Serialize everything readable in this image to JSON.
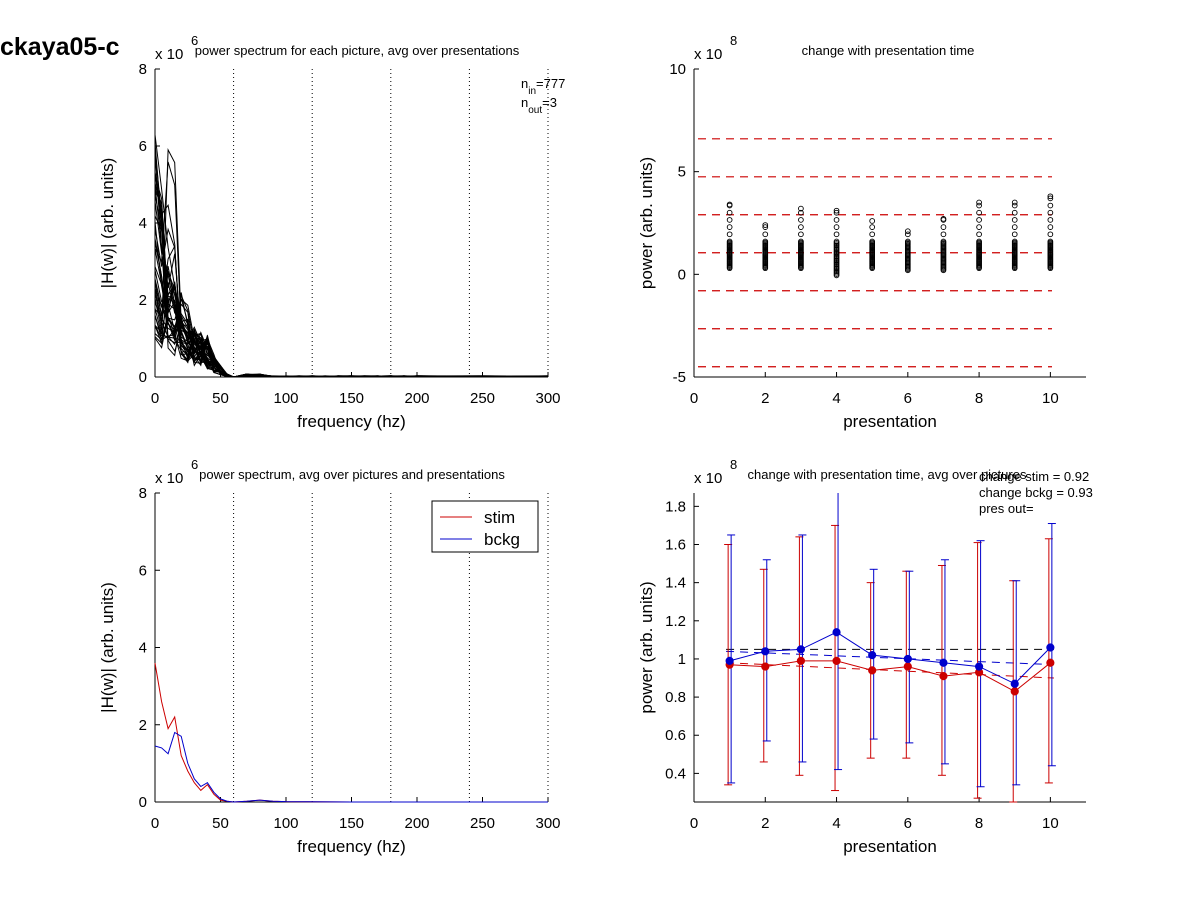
{
  "figure_title": "ckaya05-c",
  "chart_data": [
    {
      "type": "line",
      "title": "power spectrum for each picture, avg over presentations",
      "xlabel": "frequency (hz)",
      "ylabel": "|H(w)| (arb. units)",
      "xlim": [
        0,
        300
      ],
      "ylim": [
        0,
        8
      ],
      "xticks": [
        "0",
        "50",
        "100",
        "150",
        "200",
        "250",
        "300"
      ],
      "yticks": [
        "0",
        "2",
        "4",
        "6",
        "8"
      ],
      "y_multiplier_base": "x 10",
      "y_multiplier_exp": "6",
      "vlines": [
        60,
        120,
        180,
        240,
        300
      ],
      "annotation": {
        "n_in_label": "n",
        "n_in_sub": "in",
        "n_in_val": "=777",
        "n_out_label": "n",
        "n_out_sub": "out",
        "n_out_val": "=3"
      },
      "series_count": 40,
      "x": [
        0,
        5,
        10,
        15,
        20,
        25,
        30,
        35,
        40,
        45,
        50,
        55,
        60,
        70,
        80,
        90,
        100,
        110,
        120,
        130,
        140,
        150,
        160,
        170,
        180,
        190,
        200,
        250,
        300
      ],
      "envelope_note_values": {
        "peak_max": 6.3,
        "peak_at_hz": 2
      },
      "grid": false
    },
    {
      "type": "scatter",
      "title": "change with presentation time",
      "xlabel": "presentation",
      "ylabel": "power (arb. units)",
      "xlim": [
        0,
        11
      ],
      "ylim": [
        -5,
        10
      ],
      "xticks": [
        "0",
        "2",
        "4",
        "6",
        "8",
        "10"
      ],
      "yticks": [
        "-5",
        "0",
        "5",
        "10"
      ],
      "y_multiplier_base": "x 10",
      "y_multiplier_exp": "8",
      "hlines": [
        6.6,
        4.75,
        2.9,
        1.05,
        -0.8,
        -2.65,
        -4.5
      ],
      "hline_color": "#cc0000",
      "column_max": [
        3.4,
        2.4,
        3.2,
        3.1,
        2.6,
        2.1,
        2.7,
        3.5,
        3.5,
        3.8
      ],
      "column_min": [
        0.3,
        0.3,
        0.3,
        -0.05,
        0.3,
        0.2,
        0.2,
        0.3,
        0.3,
        0.3
      ],
      "grid": false
    },
    {
      "type": "line",
      "title": "power spectrum, avg over pictures and presentations",
      "xlabel": "frequency (hz)",
      "ylabel": "|H(w)| (arb. units)",
      "xlim": [
        0,
        300
      ],
      "ylim": [
        0,
        8
      ],
      "xticks": [
        "0",
        "50",
        "100",
        "150",
        "200",
        "250",
        "300"
      ],
      "yticks": [
        "0",
        "2",
        "4",
        "6",
        "8"
      ],
      "y_multiplier_base": "x 10",
      "y_multiplier_exp": "6",
      "vlines": [
        60,
        120,
        180,
        240,
        300
      ],
      "legend_position": "top-right",
      "x": [
        0,
        5,
        10,
        15,
        20,
        25,
        30,
        35,
        40,
        45,
        50,
        55,
        60,
        70,
        80,
        90,
        100,
        150,
        200,
        250,
        300
      ],
      "series": [
        {
          "name": "stim",
          "color": "#cc0000",
          "values": [
            3.6,
            2.6,
            1.9,
            2.2,
            1.2,
            0.8,
            0.5,
            0.3,
            0.45,
            0.2,
            0.05,
            0.02,
            0.0,
            0.02,
            0.05,
            0.02,
            0.01,
            0.0,
            0.0,
            0.0,
            0.0
          ]
        },
        {
          "name": "bckg",
          "color": "#0000cc",
          "values": [
            1.45,
            1.4,
            1.25,
            1.8,
            1.7,
            1.0,
            0.6,
            0.4,
            0.5,
            0.25,
            0.08,
            0.02,
            0.0,
            0.02,
            0.05,
            0.02,
            0.01,
            0.0,
            0.0,
            0.0,
            0.0
          ]
        }
      ],
      "grid": false
    },
    {
      "type": "line",
      "title": "change with presentation time, avg over pictures",
      "xlabel": "presentation",
      "ylabel": "power (arb. units)",
      "xlim": [
        0,
        11
      ],
      "ylim": [
        0.25,
        1.87
      ],
      "xticks": [
        "0",
        "2",
        "4",
        "6",
        "8",
        "10"
      ],
      "yticks": [
        "0.4",
        "0.6",
        "0.8",
        "1",
        "1.2",
        "1.4",
        "1.6",
        "1.8"
      ],
      "y_multiplier_base": "x 10",
      "y_multiplier_exp": "8",
      "stats_text": [
        "change stim = 0.92",
        "change bckg = 0.93",
        "pres out="
      ],
      "x": [
        1,
        2,
        3,
        4,
        5,
        6,
        7,
        8,
        9,
        10
      ],
      "series": [
        {
          "name": "stim",
          "color": "#cc0000",
          "values": [
            0.97,
            0.96,
            0.99,
            0.99,
            0.94,
            0.96,
            0.91,
            0.93,
            0.83,
            0.98
          ],
          "err_low": [
            0.34,
            0.46,
            0.39,
            0.31,
            0.48,
            0.48,
            0.39,
            0.27,
            0.25,
            0.35
          ],
          "err_high": [
            1.6,
            1.47,
            1.64,
            1.7,
            1.4,
            1.46,
            1.49,
            1.61,
            1.41,
            1.63
          ]
        },
        {
          "name": "bckg",
          "color": "#0000cc",
          "values": [
            0.99,
            1.04,
            1.05,
            1.14,
            1.02,
            1.0,
            0.98,
            0.96,
            0.87,
            1.06
          ],
          "err_low": [
            0.35,
            0.57,
            0.46,
            0.42,
            0.58,
            0.56,
            0.45,
            0.33,
            0.34,
            0.44
          ],
          "err_high": [
            1.65,
            1.52,
            1.65,
            1.9,
            1.47,
            1.46,
            1.52,
            1.62,
            1.41,
            1.71
          ]
        }
      ],
      "ref_lines": [
        {
          "color": "#000000",
          "x0": 0.9,
          "x1": 10.1,
          "y0": 1.05,
          "y1": 1.05
        },
        {
          "color": "#0000cc",
          "x0": 0.9,
          "x1": 10.1,
          "y0": 1.04,
          "y1": 0.97
        },
        {
          "color": "#cc0000",
          "x0": 0.9,
          "x1": 10.1,
          "y0": 0.98,
          "y1": 0.9
        }
      ],
      "grid": false
    }
  ]
}
